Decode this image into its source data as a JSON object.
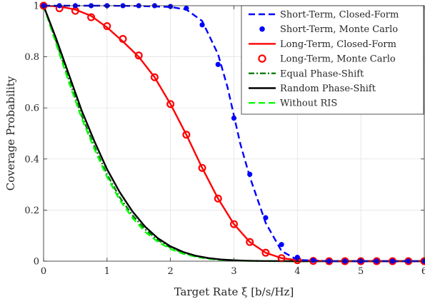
{
  "chart_data": {
    "type": "line",
    "title": "",
    "xlabel": "Target Rate ξ [b/s/Hz]",
    "ylabel": "Coverage Probability",
    "xlim": [
      0,
      6
    ],
    "ylim": [
      0,
      1
    ],
    "x_ticks": [
      0,
      1,
      2,
      3,
      4,
      5,
      6
    ],
    "y_ticks": [
      0,
      0.2,
      0.4,
      0.6,
      0.8,
      1
    ],
    "grid": true,
    "legend_position": "top-right",
    "series": [
      {
        "name": "Short-Term, Closed-Form",
        "style": "dashed",
        "marker": "none",
        "color": "#0000ff",
        "x": [
          0,
          0.5,
          1,
          1.5,
          2,
          2.25,
          2.5,
          2.75,
          2.9,
          3,
          3.1,
          3.25,
          3.5,
          3.75,
          4,
          4.5,
          5,
          5.5,
          6
        ],
        "y": [
          1,
          1,
          1,
          0.999,
          0.995,
          0.985,
          0.94,
          0.81,
          0.68,
          0.57,
          0.46,
          0.33,
          0.15,
          0.04,
          0.005,
          0,
          0,
          0,
          0
        ]
      },
      {
        "name": "Short-Term, Monte Carlo",
        "style": "none",
        "marker": "filled-circle",
        "color": "#0000ff",
        "x": [
          0,
          0.25,
          0.5,
          0.75,
          1,
          1.25,
          1.5,
          1.75,
          2,
          2.25,
          2.5,
          2.75,
          3,
          3.25,
          3.5,
          3.75,
          4,
          4.25,
          4.5,
          4.75,
          5,
          5.25,
          5.5,
          5.75,
          6
        ],
        "y": [
          1,
          1,
          1,
          1,
          1,
          1,
          1,
          1,
          0.997,
          0.99,
          0.925,
          0.77,
          0.56,
          0.34,
          0.17,
          0.065,
          0.015,
          0.003,
          0,
          0,
          0,
          0,
          0,
          0,
          0
        ]
      },
      {
        "name": "Long-Term, Closed-Form",
        "style": "solid",
        "marker": "none",
        "color": "#ff0000",
        "x": [
          0,
          0.25,
          0.5,
          0.75,
          1,
          1.25,
          1.5,
          1.75,
          2,
          2.25,
          2.5,
          2.75,
          3,
          3.25,
          3.5,
          3.75,
          4,
          4.5,
          5,
          5.5,
          6
        ],
        "y": [
          1,
          0.997,
          0.985,
          0.96,
          0.915,
          0.86,
          0.8,
          0.72,
          0.615,
          0.495,
          0.365,
          0.245,
          0.145,
          0.075,
          0.033,
          0.012,
          0.004,
          0,
          0,
          0,
          0
        ]
      },
      {
        "name": "Long-Term, Monte Carlo",
        "style": "none",
        "marker": "open-circle",
        "color": "#ff0000",
        "x": [
          0,
          0.25,
          0.5,
          0.75,
          1,
          1.25,
          1.5,
          1.75,
          2,
          2.25,
          2.5,
          2.75,
          3,
          3.25,
          3.5,
          3.75,
          4,
          4.25,
          4.5,
          4.75,
          5,
          5.25,
          5.5,
          5.75,
          6
        ],
        "y": [
          1,
          0.99,
          0.98,
          0.955,
          0.92,
          0.87,
          0.805,
          0.72,
          0.615,
          0.495,
          0.365,
          0.245,
          0.145,
          0.075,
          0.033,
          0.012,
          0.004,
          0.001,
          0,
          0,
          0,
          0,
          0,
          0,
          0
        ]
      },
      {
        "name": "Equal Phase-Shift",
        "style": "dash-dot",
        "marker": "none",
        "color": "#007f00",
        "x": [
          0,
          0.2,
          0.4,
          0.6,
          0.8,
          1,
          1.2,
          1.4,
          1.6,
          1.8,
          2,
          2.2,
          2.4,
          2.6,
          2.8,
          3,
          3.2,
          3.5,
          4,
          5,
          6
        ],
        "y": [
          1,
          0.86,
          0.71,
          0.57,
          0.45,
          0.34,
          0.25,
          0.18,
          0.125,
          0.083,
          0.053,
          0.033,
          0.019,
          0.011,
          0.006,
          0.003,
          0.0015,
          0.0005,
          0,
          0,
          0
        ]
      },
      {
        "name": "Random Phase-Shift",
        "style": "solid",
        "marker": "none",
        "color": "#000000",
        "x": [
          0,
          0.2,
          0.4,
          0.6,
          0.8,
          1,
          1.2,
          1.4,
          1.6,
          1.8,
          2,
          2.2,
          2.4,
          2.6,
          2.8,
          3,
          3.2,
          3.5,
          4,
          5,
          6
        ],
        "y": [
          1,
          0.87,
          0.73,
          0.59,
          0.47,
          0.36,
          0.27,
          0.195,
          0.135,
          0.09,
          0.058,
          0.036,
          0.021,
          0.012,
          0.0065,
          0.0035,
          0.0017,
          0.0006,
          0,
          0,
          0
        ]
      },
      {
        "name": "Without RIS",
        "style": "dashed",
        "marker": "none",
        "color": "#00ff00",
        "x": [
          0,
          0.2,
          0.4,
          0.6,
          0.8,
          1,
          1.2,
          1.4,
          1.6,
          1.8,
          2,
          2.2,
          2.4,
          2.6,
          2.8,
          3,
          3.2,
          3.5,
          4,
          5,
          6
        ],
        "y": [
          1,
          0.85,
          0.7,
          0.56,
          0.44,
          0.33,
          0.24,
          0.17,
          0.115,
          0.076,
          0.048,
          0.029,
          0.017,
          0.009,
          0.005,
          0.0025,
          0.0012,
          0.0004,
          0,
          0,
          0
        ]
      }
    ]
  }
}
